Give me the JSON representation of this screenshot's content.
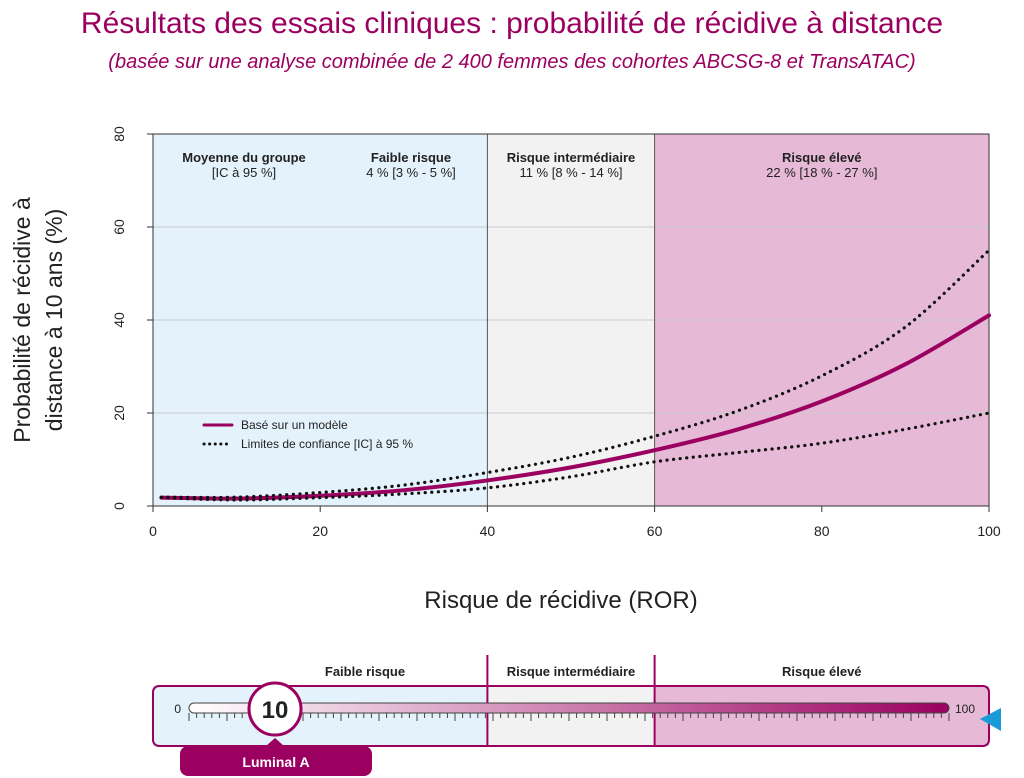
{
  "title": "Résultats des essais cliniques : probabilité de récidive à distance",
  "subtitle": "(basée sur une analyse combinée de 2 400 femmes des cohortes ABCSG-8 et TransATAC)",
  "colors": {
    "accent": "#9b0060",
    "low_bg": "#e3f2fb",
    "mid_bg": "#f2f2f2",
    "high_bg": "#e6b9d6",
    "pointer": "#1a9ad6"
  },
  "chart_data": {
    "type": "line",
    "title": "Résultats des essais cliniques : probabilité de récidive à distance",
    "xlabel": "Risque de récidive (ROR)",
    "ylabel": "Probabilité de récidive à distance à 10 ans (%)",
    "xlim": [
      0,
      100
    ],
    "ylim": [
      0,
      80
    ],
    "xticks": [
      "0",
      "20",
      "40",
      "60",
      "80",
      "100"
    ],
    "yticks": [
      "0",
      "20",
      "40",
      "60",
      "80"
    ],
    "grid": true,
    "x": [
      1,
      10,
      20,
      30,
      40,
      50,
      60,
      70,
      80,
      90,
      100
    ],
    "series": [
      {
        "name": "Basé sur un modèle",
        "style": "solid",
        "values": [
          1.8,
          1.6,
          2.2,
          3.4,
          5.5,
          8.3,
          12.0,
          16.5,
          22.5,
          30.5,
          41.0
        ]
      },
      {
        "name": "Limites de confiance [IC] à 95 %",
        "style": "dotted",
        "values": [
          1.9,
          1.9,
          2.9,
          4.5,
          7.2,
          10.5,
          15.0,
          20.5,
          28.0,
          38.5,
          55.0
        ]
      },
      {
        "name": "",
        "style": "dotted",
        "values": [
          1.8,
          1.3,
          1.8,
          2.6,
          3.9,
          6.3,
          9.5,
          11.5,
          13.5,
          16.5,
          20.0
        ]
      }
    ],
    "regions": [
      {
        "from": 0,
        "to": 40,
        "label": "Faible risque",
        "value": "4 % [3 % - 5 %]"
      },
      {
        "from": 40,
        "to": 60,
        "label": "Risque intermédiaire",
        "value": "11 % [8 % - 14 %]"
      },
      {
        "from": 60,
        "to": 100,
        "label": "Risque élevé",
        "value": "22 % [18 % - 27 %]"
      }
    ],
    "group_header": {
      "label": "Moyenne du groupe",
      "ci": "[IC à 95 %]"
    },
    "legend_position": "middle-left"
  },
  "scale_bar": {
    "min_label": "0",
    "max_label": "100",
    "value": 10,
    "value_label": "10",
    "subtype_label": "Luminal A",
    "regions": [
      {
        "label": "Faible risque"
      },
      {
        "label": "Risque intermédiaire"
      },
      {
        "label": "Risque élevé"
      }
    ]
  }
}
